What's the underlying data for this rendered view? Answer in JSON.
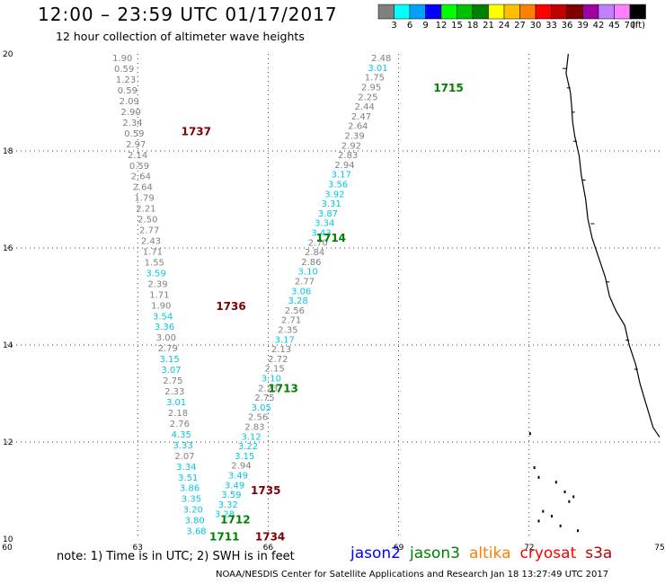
{
  "header": {
    "title": "12:00 – 23:59 UTC 01/17/2017",
    "subtitle": "12 hour collection of altimeter wave heights"
  },
  "legend": {
    "unit": "(ft)",
    "items": [
      {
        "label": "3",
        "color": "#808080"
      },
      {
        "label": "6",
        "color": "#00ffff"
      },
      {
        "label": "9",
        "color": "#00a0ff"
      },
      {
        "label": "12",
        "color": "#0000ff"
      },
      {
        "label": "15",
        "color": "#00ff00"
      },
      {
        "label": "18",
        "color": "#00c000"
      },
      {
        "label": "21",
        "color": "#008000"
      },
      {
        "label": "24",
        "color": "#ffff00"
      },
      {
        "label": "27",
        "color": "#ffc000"
      },
      {
        "label": "30",
        "color": "#ff8000"
      },
      {
        "label": "33",
        "color": "#ff0000"
      },
      {
        "label": "36",
        "color": "#c00000"
      },
      {
        "label": "39",
        "color": "#800000"
      },
      {
        "label": "42",
        "color": "#a000a0"
      },
      {
        "label": "45",
        "color": "#c080ff"
      },
      {
        "label": "70",
        "color": "#ff80ff"
      },
      {
        "label": "",
        "color": "#000000"
      }
    ]
  },
  "axes": {
    "lon": [
      "60",
      "63",
      "66",
      "69",
      "72",
      "75"
    ],
    "lat": [
      "20",
      "18",
      "16",
      "14",
      "12",
      "10"
    ]
  },
  "tracks": [
    {
      "values": [
        [
          "1.90",
          "#808080"
        ],
        [
          "0.59",
          "#808080"
        ],
        [
          "1.23",
          "#808080"
        ],
        [
          "0.59",
          "#808080"
        ],
        [
          "2.09",
          "#808080"
        ],
        [
          "2.90",
          "#808080"
        ],
        [
          "2.34",
          "#808080"
        ],
        [
          "0.59",
          "#808080"
        ],
        [
          "2.97",
          "#808080"
        ],
        [
          "2.14",
          "#808080"
        ],
        [
          "0.59",
          "#808080"
        ],
        [
          "2.64",
          "#808080"
        ],
        [
          "2.64",
          "#808080"
        ],
        [
          "1.79",
          "#808080"
        ],
        [
          "2.21",
          "#808080"
        ],
        [
          "2.50",
          "#808080"
        ],
        [
          "2.77",
          "#808080"
        ],
        [
          "2.43",
          "#808080"
        ],
        [
          "1.71",
          "#808080"
        ],
        [
          "1.55",
          "#808080"
        ],
        [
          "3.59",
          "#00c8e0"
        ],
        [
          "2.39",
          "#808080"
        ],
        [
          "1.71",
          "#808080"
        ],
        [
          "1.90",
          "#808080"
        ],
        [
          "3.54",
          "#00c8e0"
        ],
        [
          "3.36",
          "#00c8e0"
        ],
        [
          "3.00",
          "#808080"
        ],
        [
          "2.79",
          "#808080"
        ],
        [
          "3.15",
          "#00c8e0"
        ],
        [
          "3.07",
          "#00c8e0"
        ],
        [
          "2.75",
          "#808080"
        ],
        [
          "2.33",
          "#808080"
        ],
        [
          "3.01",
          "#00c8e0"
        ],
        [
          "2.18",
          "#808080"
        ],
        [
          "2.76",
          "#808080"
        ],
        [
          "4.35",
          "#00c8e0"
        ],
        [
          "3.33",
          "#00c8e0"
        ],
        [
          "2.07",
          "#808080"
        ],
        [
          "3.34",
          "#00c8e0"
        ],
        [
          "3.51",
          "#00c8e0"
        ],
        [
          "3.86",
          "#00c8e0"
        ],
        [
          "3.35",
          "#00c8e0"
        ],
        [
          "3.20",
          "#00c8e0"
        ],
        [
          "3.80",
          "#00c8e0"
        ],
        [
          "3.68",
          "#00c8e0"
        ]
      ]
    },
    {
      "values": [
        [
          "2.48",
          "#808080"
        ],
        [
          "3.01",
          "#00c8e0"
        ],
        [
          "1.75",
          "#808080"
        ],
        [
          "2.95",
          "#808080"
        ],
        [
          "2.25",
          "#808080"
        ],
        [
          "2.44",
          "#808080"
        ],
        [
          "2.47",
          "#808080"
        ],
        [
          "2.64",
          "#808080"
        ],
        [
          "2.39",
          "#808080"
        ],
        [
          "2.92",
          "#808080"
        ],
        [
          "2.83",
          "#808080"
        ],
        [
          "2.94",
          "#808080"
        ],
        [
          "3.17",
          "#00c8e0"
        ],
        [
          "3.56",
          "#00c8e0"
        ],
        [
          "3.92",
          "#00c8e0"
        ],
        [
          "3.31",
          "#00c8e0"
        ],
        [
          "3.87",
          "#00c8e0"
        ],
        [
          "3.34",
          "#00c8e0"
        ],
        [
          "3.43",
          "#00c8e0"
        ],
        [
          "2.70",
          "#808080"
        ],
        [
          "2.84",
          "#808080"
        ],
        [
          "2.86",
          "#808080"
        ],
        [
          "3.10",
          "#00c8e0"
        ],
        [
          "2.77",
          "#808080"
        ],
        [
          "3.06",
          "#00c8e0"
        ],
        [
          "3.28",
          "#00c8e0"
        ],
        [
          "2.56",
          "#808080"
        ],
        [
          "2.71",
          "#808080"
        ],
        [
          "2.35",
          "#808080"
        ],
        [
          "3.17",
          "#00c8e0"
        ],
        [
          "2.13",
          "#808080"
        ],
        [
          "2.72",
          "#808080"
        ],
        [
          "2.15",
          "#808080"
        ],
        [
          "3.10",
          "#00c8e0"
        ],
        [
          "2.23",
          "#808080"
        ],
        [
          "2.75",
          "#808080"
        ],
        [
          "3.05",
          "#00c8e0"
        ],
        [
          "2.56",
          "#808080"
        ],
        [
          "2.83",
          "#808080"
        ],
        [
          "3.12",
          "#00c8e0"
        ],
        [
          "3.22",
          "#00c8e0"
        ],
        [
          "3.15",
          "#00c8e0"
        ],
        [
          "2.94",
          "#808080"
        ],
        [
          "3.49",
          "#00c8e0"
        ],
        [
          "3.49",
          "#00c8e0"
        ],
        [
          "3.59",
          "#00c8e0"
        ],
        [
          "3.32",
          "#00c8e0"
        ],
        [
          "3.28",
          "#00c8e0"
        ]
      ]
    }
  ],
  "passes": [
    {
      "label": "1715",
      "color": "#008000",
      "lon": 69.8,
      "lat": 19.3
    },
    {
      "label": "1737",
      "color": "#800000",
      "lon": 64.0,
      "lat": 18.4
    },
    {
      "label": "1714",
      "color": "#008000",
      "lon": 67.1,
      "lat": 16.2
    },
    {
      "label": "1736",
      "color": "#800000",
      "lon": 64.8,
      "lat": 14.8
    },
    {
      "label": "1713",
      "color": "#008000",
      "lon": 66.0,
      "lat": 13.1
    },
    {
      "label": "1735",
      "color": "#800000",
      "lon": 65.6,
      "lat": 11.0
    },
    {
      "label": "1712",
      "color": "#008000",
      "lon": 64.9,
      "lat": 10.4
    },
    {
      "label": "1711",
      "color": "#008000",
      "lon": 64.65,
      "lat": 10.05
    },
    {
      "label": "1734",
      "color": "#800000",
      "lon": 65.7,
      "lat": 10.05
    }
  ],
  "satellites": [
    {
      "name": "jason2",
      "color": "#0000ff"
    },
    {
      "name": "jason3",
      "color": "#008000"
    },
    {
      "name": "altika",
      "color": "#ff8000"
    },
    {
      "name": "cryosat",
      "color": "#ff0000"
    },
    {
      "name": "s3a",
      "color": "#c00000"
    }
  ],
  "note": "note: 1) Time is in UTC; 2) SWH is in feet",
  "credit": "NOAA/NESDIS Center for Satellite Applications and Research   Jan 18 13:27:49 UTC 2017"
}
